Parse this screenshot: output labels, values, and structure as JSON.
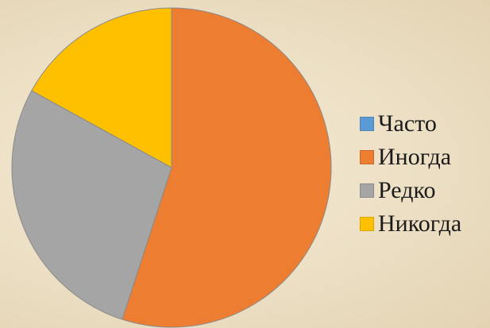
{
  "chart_data": {
    "type": "pie",
    "categories": [
      "Часто",
      "Иногда",
      "Редко",
      "Никогда"
    ],
    "values": [
      0,
      55,
      28,
      17
    ],
    "colors": [
      "#5b9bd5",
      "#ed7d31",
      "#a5a5a5",
      "#ffc000"
    ],
    "start_angle_deg": 0,
    "direction": "clockwise",
    "legend_position": "right",
    "slice_border_color": "#8a8a8a"
  }
}
